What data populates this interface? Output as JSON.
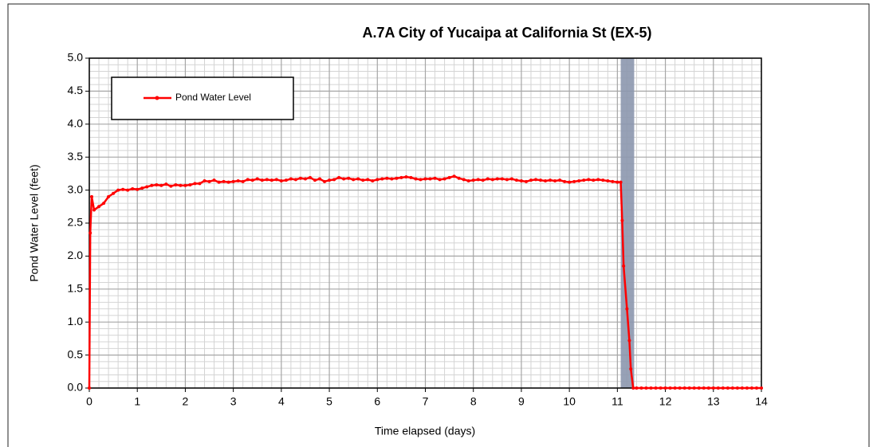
{
  "chart_data": {
    "type": "line",
    "title": "A.7A City of Yucaipa at California St (EX-5)",
    "xlabel": "Time elapsed (days)",
    "ylabel": "Pond Water Level (feet)",
    "xlim": [
      0,
      14
    ],
    "ylim": [
      0,
      5
    ],
    "xticks": [
      0,
      1,
      2,
      3,
      4,
      5,
      6,
      7,
      8,
      9,
      10,
      11,
      12,
      13,
      14
    ],
    "yticks": [
      {
        "value": 0,
        "label": "0.0"
      },
      {
        "value": 0.5,
        "label": "0.5"
      },
      {
        "value": 1,
        "label": "1.0"
      },
      {
        "value": 1.5,
        "label": "1.5"
      },
      {
        "value": 2,
        "label": "2.0"
      },
      {
        "value": 2.5,
        "label": "2.5"
      },
      {
        "value": 3,
        "label": "3.0"
      },
      {
        "value": 3.5,
        "label": "3.5"
      },
      {
        "value": 4,
        "label": "4.0"
      },
      {
        "value": 4.5,
        "label": "4.5"
      },
      {
        "value": 5,
        "label": "5.0"
      }
    ],
    "grid": true,
    "minor_grid": true,
    "legend": "upper left",
    "shaded_region": [
      11.07,
      11.35
    ],
    "shaded_color": "#8c97ae",
    "series": [
      {
        "name": "Pond Water Level",
        "color": "#ff0000",
        "x": [
          0,
          0.02,
          0.05,
          0.1,
          0.2,
          0.3,
          0.4,
          0.5,
          0.6,
          0.7,
          0.8,
          0.9,
          1.0,
          1.1,
          1.2,
          1.3,
          1.4,
          1.5,
          1.6,
          1.7,
          1.8,
          1.9,
          2.0,
          2.1,
          2.2,
          2.3,
          2.4,
          2.5,
          2.6,
          2.7,
          2.8,
          2.9,
          3.0,
          3.1,
          3.2,
          3.3,
          3.4,
          3.5,
          3.6,
          3.7,
          3.8,
          3.9,
          4.0,
          4.1,
          4.2,
          4.3,
          4.4,
          4.5,
          4.6,
          4.7,
          4.8,
          4.9,
          5.0,
          5.1,
          5.2,
          5.3,
          5.4,
          5.5,
          5.6,
          5.7,
          5.8,
          5.9,
          6.0,
          6.1,
          6.2,
          6.3,
          6.4,
          6.5,
          6.6,
          6.7,
          6.8,
          6.9,
          7.0,
          7.1,
          7.2,
          7.3,
          7.4,
          7.5,
          7.6,
          7.7,
          7.8,
          7.9,
          8.0,
          8.1,
          8.2,
          8.3,
          8.4,
          8.5,
          8.6,
          8.7,
          8.8,
          8.9,
          9.0,
          9.1,
          9.2,
          9.3,
          9.4,
          9.5,
          9.6,
          9.7,
          9.8,
          9.9,
          10.0,
          10.1,
          10.2,
          10.3,
          10.4,
          10.5,
          10.6,
          10.7,
          10.8,
          10.9,
          11.0,
          11.07,
          11.1,
          11.13,
          11.2,
          11.25,
          11.28,
          11.33,
          11.4,
          11.5,
          11.6,
          11.7,
          11.8,
          11.9,
          12.0,
          12.1,
          12.2,
          12.3,
          12.4,
          12.5,
          12.6,
          12.7,
          12.8,
          12.9,
          13.0,
          13.1,
          13.2,
          13.3,
          13.4,
          13.5,
          13.6,
          13.7,
          13.8,
          13.9,
          14.0
        ],
        "values": [
          0,
          2.35,
          2.9,
          2.7,
          2.75,
          2.8,
          2.9,
          2.95,
          3.0,
          3.01,
          3.0,
          3.02,
          3.01,
          3.03,
          3.05,
          3.07,
          3.08,
          3.07,
          3.09,
          3.06,
          3.08,
          3.07,
          3.07,
          3.08,
          3.1,
          3.1,
          3.14,
          3.13,
          3.15,
          3.12,
          3.13,
          3.12,
          3.13,
          3.14,
          3.13,
          3.16,
          3.15,
          3.17,
          3.15,
          3.16,
          3.15,
          3.16,
          3.14,
          3.15,
          3.17,
          3.16,
          3.18,
          3.17,
          3.19,
          3.15,
          3.17,
          3.13,
          3.15,
          3.16,
          3.19,
          3.17,
          3.18,
          3.16,
          3.17,
          3.15,
          3.16,
          3.14,
          3.16,
          3.17,
          3.18,
          3.17,
          3.18,
          3.19,
          3.2,
          3.19,
          3.17,
          3.16,
          3.17,
          3.17,
          3.18,
          3.16,
          3.17,
          3.19,
          3.21,
          3.18,
          3.16,
          3.14,
          3.15,
          3.16,
          3.15,
          3.17,
          3.16,
          3.17,
          3.17,
          3.16,
          3.17,
          3.15,
          3.14,
          3.13,
          3.15,
          3.16,
          3.15,
          3.14,
          3.15,
          3.14,
          3.15,
          3.13,
          3.12,
          3.13,
          3.14,
          3.15,
          3.16,
          3.15,
          3.16,
          3.15,
          3.14,
          3.13,
          3.12,
          3.12,
          2.54,
          1.85,
          1.2,
          0.72,
          0.29,
          0,
          0,
          0,
          0,
          0,
          0,
          0,
          0,
          0,
          0,
          0,
          0,
          0,
          0,
          0,
          0,
          0,
          0,
          0,
          0,
          0,
          0,
          0,
          0,
          0,
          0,
          0,
          0
        ]
      }
    ]
  }
}
